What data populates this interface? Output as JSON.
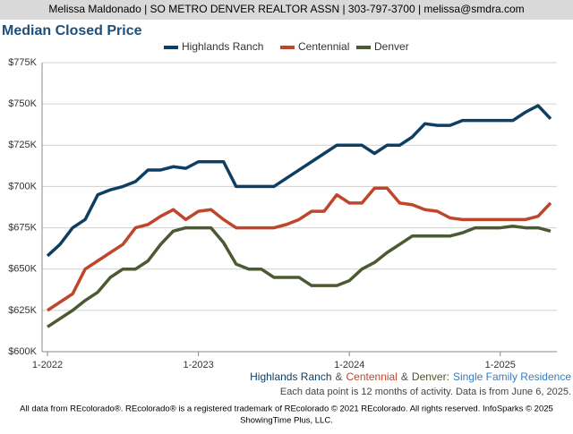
{
  "header": "Melissa Maldonado | SO METRO DENVER REALTOR ASSN | 303-797-3700 | melissa@smdra.com",
  "chart_data": {
    "type": "line",
    "title": "Median Closed Price",
    "categories": [
      "1-2022",
      null,
      null,
      null,
      null,
      null,
      null,
      null,
      null,
      null,
      null,
      null,
      "1-2023",
      null,
      null,
      null,
      null,
      null,
      null,
      null,
      null,
      null,
      null,
      null,
      "1-2024",
      null,
      null,
      null,
      null,
      null,
      null,
      null,
      null,
      null,
      null,
      null,
      "1-2025",
      null,
      null,
      null,
      null
    ],
    "series": [
      {
        "name": "Highlands Ranch",
        "color": "#0e3f63",
        "values": [
          658000,
          665000,
          675000,
          680000,
          695000,
          698000,
          700000,
          703000,
          710000,
          710000,
          712000,
          711000,
          715000,
          715000,
          715000,
          700000,
          700000,
          700000,
          700000,
          705000,
          710000,
          715000,
          720000,
          725000,
          725000,
          725000,
          720000,
          725000,
          725000,
          730000,
          738000,
          737000,
          737000,
          740000,
          740000,
          740000,
          740000,
          740000,
          745000,
          749000,
          741000
        ]
      },
      {
        "name": "Centennial",
        "color": "#c0462a",
        "values": [
          625000,
          630000,
          635000,
          650000,
          655000,
          660000,
          665000,
          675000,
          677000,
          682000,
          686000,
          680000,
          685000,
          686000,
          680000,
          675000,
          675000,
          675000,
          675000,
          677000,
          680000,
          685000,
          685000,
          695000,
          690000,
          690000,
          699000,
          699000,
          690000,
          689000,
          686000,
          685000,
          681000,
          680000,
          680000,
          680000,
          680000,
          680000,
          680000,
          682000,
          690000
        ]
      },
      {
        "name": "Denver",
        "color": "#4b5a30",
        "values": [
          615000,
          620000,
          625000,
          631000,
          636000,
          645000,
          650000,
          650000,
          655000,
          665000,
          673000,
          675000,
          675000,
          675000,
          666000,
          653000,
          650000,
          650000,
          645000,
          645000,
          645000,
          640000,
          640000,
          640000,
          643000,
          650000,
          654000,
          660000,
          665000,
          670000,
          670000,
          670000,
          670000,
          672000,
          675000,
          675000,
          675000,
          676000,
          675000,
          675000,
          673000
        ]
      }
    ],
    "ylim": [
      600000,
      775000
    ],
    "yticks": [
      {
        "value": 600000,
        "label": "$600K"
      },
      {
        "value": 625000,
        "label": "$625K"
      },
      {
        "value": 650000,
        "label": "$650K"
      },
      {
        "value": 675000,
        "label": "$675K"
      },
      {
        "value": 700000,
        "label": "$700K"
      },
      {
        "value": 725000,
        "label": "$725K"
      },
      {
        "value": 750000,
        "label": "$750K"
      },
      {
        "value": 775000,
        "label": "$775K"
      }
    ],
    "grid": true,
    "legend": "top",
    "caption": [
      "Highlands Ranch",
      "&",
      "Centennial",
      "&",
      "Denver:",
      "Single Family Residence"
    ],
    "note": "Each data point is 12 months of activity. Data is from June 6, 2025."
  },
  "footer": [
    "All data from REcolorado®. REcolorado® is a registered trademark of REcolorado © 2021 REcolorado. All rights reserved. InfoSparks © 2025",
    "ShowingTime Plus, LLC."
  ]
}
